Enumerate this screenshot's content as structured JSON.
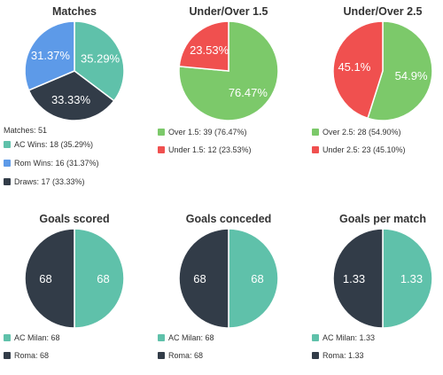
{
  "colors": {
    "teal": "#5fc1aa",
    "navy": "#323c48",
    "blue": "#5d9ae8",
    "green": "#7cc96a",
    "red": "#f0504f"
  },
  "chart_data": [
    {
      "type": "pie",
      "title": "Matches",
      "note": "Matches: 51",
      "slices": [
        {
          "label": "35.29%",
          "value": 35.29,
          "color": "#5fc1aa"
        },
        {
          "label": "33.33%",
          "value": 33.33,
          "color": "#323c48"
        },
        {
          "label": "31.37%",
          "value": 31.37,
          "color": "#5d9ae8"
        }
      ],
      "legend": [
        {
          "text": "AC Wins: 18 (35.29%)",
          "color": "#5fc1aa"
        },
        {
          "text": "Rom Wins: 16 (31.37%)",
          "color": "#5d9ae8"
        },
        {
          "text": "Draws: 17 (33.33%)",
          "color": "#323c48"
        }
      ]
    },
    {
      "type": "pie",
      "title": "Under/Over 1.5",
      "slices": [
        {
          "label": "76.47%",
          "value": 76.47,
          "color": "#7cc96a"
        },
        {
          "label": "23.53%",
          "value": 23.53,
          "color": "#f0504f"
        }
      ],
      "legend": [
        {
          "text": "Over 1.5: 39 (76.47%)",
          "color": "#7cc96a"
        },
        {
          "text": "Under 1.5: 12 (23.53%)",
          "color": "#f0504f"
        }
      ]
    },
    {
      "type": "pie",
      "title": "Under/Over 2.5",
      "slices": [
        {
          "label": "54.9%",
          "value": 54.9,
          "color": "#7cc96a"
        },
        {
          "label": "45.1%",
          "value": 45.1,
          "color": "#f0504f"
        }
      ],
      "legend": [
        {
          "text": "Over 2.5: 28 (54.90%)",
          "color": "#7cc96a"
        },
        {
          "text": "Under 2.5: 23 (45.10%)",
          "color": "#f0504f"
        }
      ]
    },
    {
      "type": "pie",
      "title": "Goals scored",
      "slices": [
        {
          "label": "68",
          "value": 68,
          "color": "#5fc1aa"
        },
        {
          "label": "68",
          "value": 68,
          "color": "#323c48"
        }
      ],
      "legend": [
        {
          "text": "AC Milan: 68",
          "color": "#5fc1aa"
        },
        {
          "text": "Roma: 68",
          "color": "#323c48"
        }
      ]
    },
    {
      "type": "pie",
      "title": "Goals conceded",
      "slices": [
        {
          "label": "68",
          "value": 68,
          "color": "#5fc1aa"
        },
        {
          "label": "68",
          "value": 68,
          "color": "#323c48"
        }
      ],
      "legend": [
        {
          "text": "AC Milan: 68",
          "color": "#5fc1aa"
        },
        {
          "text": "Roma: 68",
          "color": "#323c48"
        }
      ]
    },
    {
      "type": "pie",
      "title": "Goals per match",
      "slices": [
        {
          "label": "1.33",
          "value": 1.33,
          "color": "#5fc1aa"
        },
        {
          "label": "1.33",
          "value": 1.33,
          "color": "#323c48"
        }
      ],
      "legend": [
        {
          "text": "AC Milan: 1.33",
          "color": "#5fc1aa"
        },
        {
          "text": "Roma: 1.33",
          "color": "#323c48"
        }
      ]
    }
  ]
}
